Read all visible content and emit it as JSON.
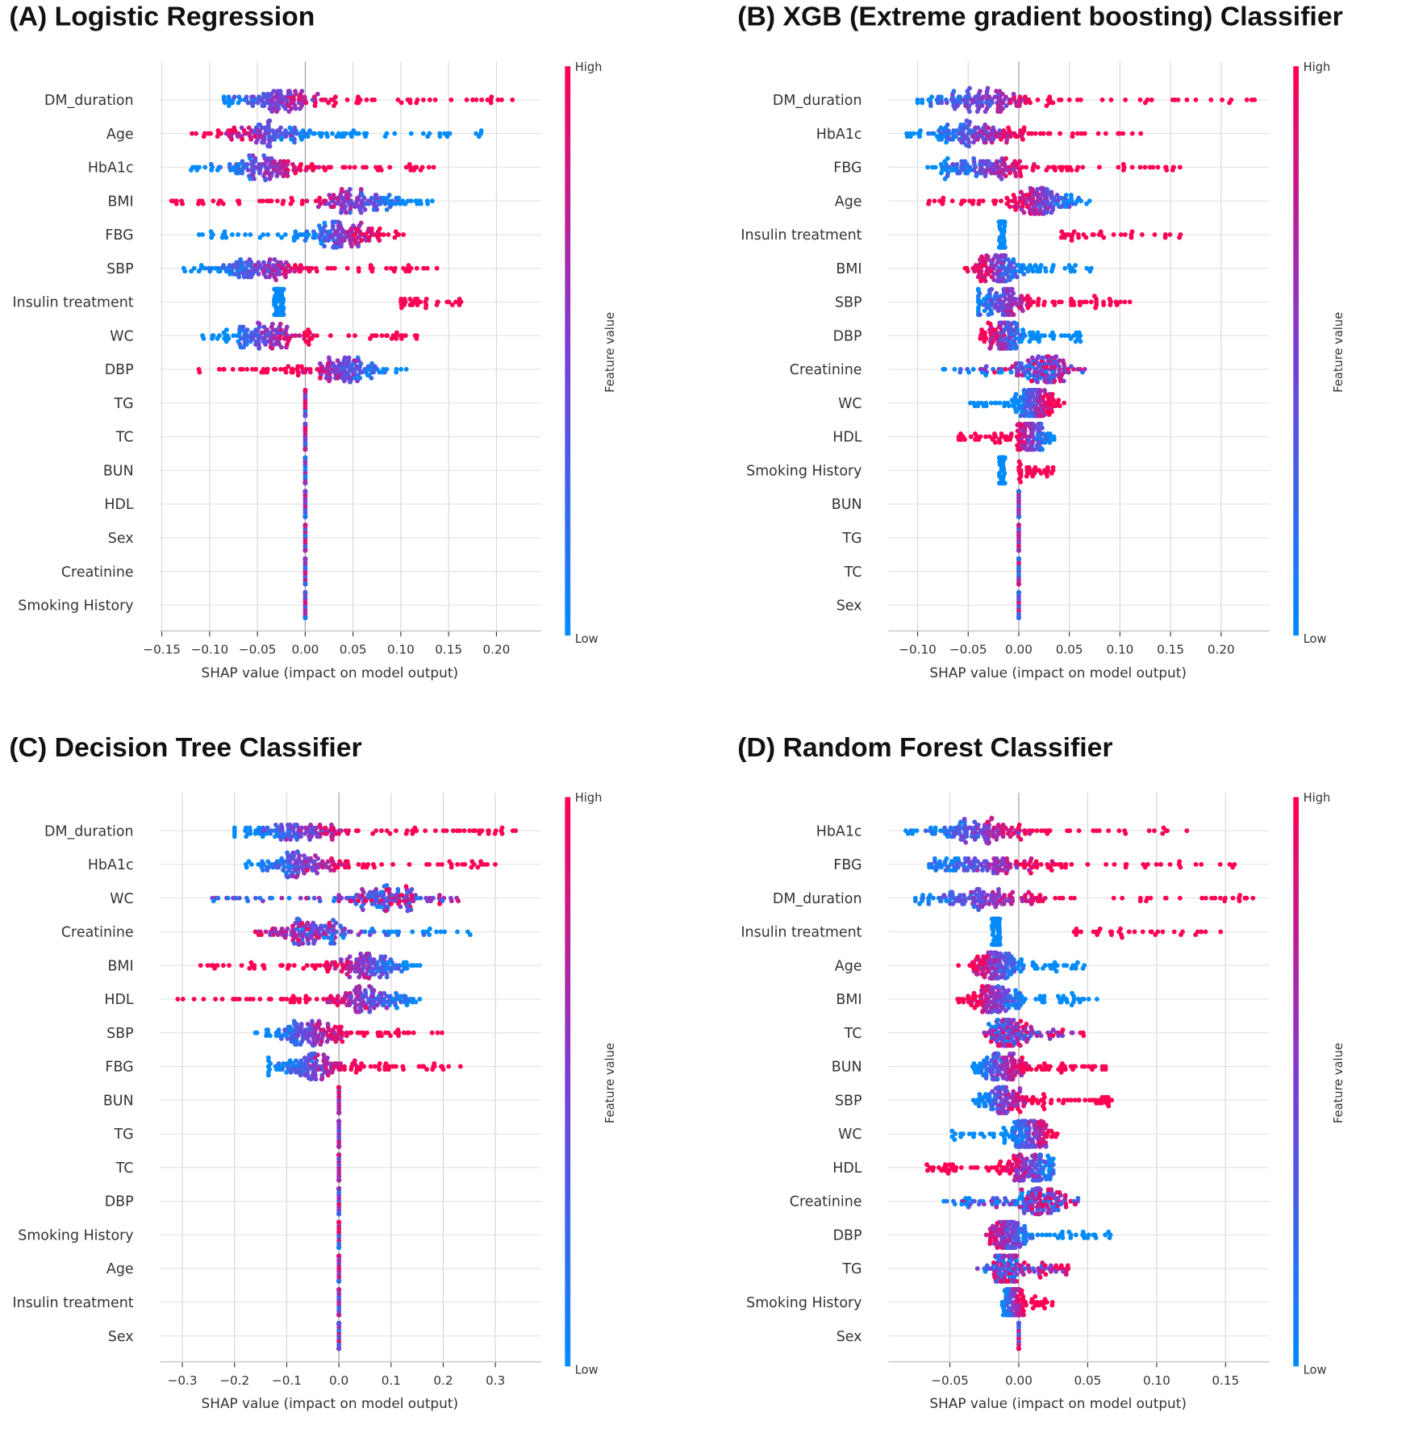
{
  "colors": {
    "low": "#008bfb",
    "high": "#ff0052",
    "grid": "#d6d6d6",
    "zero": "#999999"
  },
  "chart_data": [
    {
      "type": "scatter",
      "subtype": "shap-beeswarm",
      "title": "(A) Logistic Regression",
      "xlabel": "SHAP value (impact on model output)",
      "xlim": [
        -0.152,
        0.247
      ],
      "ticks": [
        -0.15,
        -0.1,
        -0.05,
        0.0,
        0.05,
        0.1,
        0.15,
        0.2
      ],
      "tick_labels": [
        "−0.15",
        "−0.10",
        "−0.05",
        "0.00",
        "0.05",
        "0.10",
        "0.15",
        "0.20"
      ],
      "colorbar": {
        "label": "Feature value",
        "high": "High",
        "low": "Low"
      },
      "features": [
        {
          "name": "DM_duration",
          "range": [
            -0.085,
            0.225
          ],
          "trend": 1
        },
        {
          "name": "Age",
          "range": [
            -0.12,
            0.195
          ],
          "trend": -1
        },
        {
          "name": "HbA1c",
          "range": [
            -0.12,
            0.135
          ],
          "trend": 1
        },
        {
          "name": "BMI",
          "range": [
            -0.14,
            0.14
          ],
          "trend": -1
        },
        {
          "name": "FBG",
          "range": [
            -0.115,
            0.105
          ],
          "trend": 1
        },
        {
          "name": "SBP",
          "range": [
            -0.13,
            0.145
          ],
          "trend": 1
        },
        {
          "name": "Insulin treatment",
          "range": [
            -0.025,
            0.165
          ],
          "trend": "binary",
          "high_range": [
            0.1,
            0.165
          ]
        },
        {
          "name": "WC",
          "range": [
            -0.11,
            0.12
          ],
          "trend": 1
        },
        {
          "name": "DBP",
          "range": [
            -0.115,
            0.11
          ],
          "trend": -1
        },
        {
          "name": "TG",
          "range": [
            0,
            0
          ],
          "trend": 0
        },
        {
          "name": "TC",
          "range": [
            0,
            0
          ],
          "trend": 0
        },
        {
          "name": "BUN",
          "range": [
            0,
            0
          ],
          "trend": 0
        },
        {
          "name": "HDL",
          "range": [
            0,
            0
          ],
          "trend": 0
        },
        {
          "name": "Sex",
          "range": [
            0,
            0
          ],
          "trend": 0
        },
        {
          "name": "Creatinine",
          "range": [
            0,
            0
          ],
          "trend": 0
        },
        {
          "name": "Smoking History",
          "range": [
            0,
            0
          ],
          "trend": 0
        }
      ]
    },
    {
      "type": "scatter",
      "subtype": "shap-beeswarm",
      "title": "(B) XGB (Extreme gradient boosting) Classifier",
      "xlabel": "SHAP value (impact on model output)",
      "xlim": [
        -0.129,
        0.248
      ],
      "ticks": [
        -0.1,
        -0.05,
        0.0,
        0.05,
        0.1,
        0.15,
        0.2
      ],
      "tick_labels": [
        "−0.10",
        "−0.05",
        "0.00",
        "0.05",
        "0.10",
        "0.15",
        "0.20"
      ],
      "colorbar": {
        "label": "Feature value",
        "high": "High",
        "low": "Low"
      },
      "features": [
        {
          "name": "DM_duration",
          "range": [
            -0.1,
            0.235
          ],
          "trend": 1
        },
        {
          "name": "HbA1c",
          "range": [
            -0.115,
            0.125
          ],
          "trend": 1
        },
        {
          "name": "FBG",
          "range": [
            -0.09,
            0.16
          ],
          "trend": 1
        },
        {
          "name": "Age",
          "range": [
            -0.095,
            0.07
          ],
          "trend": -1
        },
        {
          "name": "Insulin treatment",
          "range": [
            -0.015,
            0.16
          ],
          "trend": "binary",
          "high_range": [
            0.042,
            0.16
          ]
        },
        {
          "name": "BMI",
          "range": [
            -0.055,
            0.075
          ],
          "trend": -1
        },
        {
          "name": "SBP",
          "range": [
            -0.04,
            0.11
          ],
          "trend": 1
        },
        {
          "name": "DBP",
          "range": [
            -0.04,
            0.065
          ],
          "trend": -1
        },
        {
          "name": "Creatinine",
          "range": [
            -0.075,
            0.07
          ],
          "trend": 0.3
        },
        {
          "name": "WC",
          "range": [
            -0.05,
            0.045
          ],
          "trend": 1
        },
        {
          "name": "HDL",
          "range": [
            -0.06,
            0.035
          ],
          "trend": -1
        },
        {
          "name": "Smoking History",
          "range": [
            -0.015,
            0.035
          ],
          "trend": "binary",
          "high_range": [
            0.0,
            0.035
          ]
        },
        {
          "name": "BUN",
          "range": [
            0,
            0
          ],
          "trend": 0
        },
        {
          "name": "TG",
          "range": [
            0,
            0
          ],
          "trend": 0
        },
        {
          "name": "TC",
          "range": [
            0,
            0
          ],
          "trend": 0
        },
        {
          "name": "Sex",
          "range": [
            0,
            0
          ],
          "trend": 0
        }
      ]
    },
    {
      "type": "scatter",
      "subtype": "shap-beeswarm",
      "title": "(C) Decision Tree Classifier",
      "xlabel": "SHAP value (impact on model output)",
      "xlim": [
        -0.343,
        0.388
      ],
      "ticks": [
        -0.3,
        -0.2,
        -0.1,
        0.0,
        0.1,
        0.2,
        0.3
      ],
      "tick_labels": [
        "−0.3",
        "−0.2",
        "−0.1",
        "0.0",
        "0.1",
        "0.2",
        "0.3"
      ],
      "colorbar": {
        "label": "Feature value",
        "high": "High",
        "low": "Low"
      },
      "features": [
        {
          "name": "DM_duration",
          "range": [
            -0.2,
            0.35
          ],
          "trend": 1
        },
        {
          "name": "HbA1c",
          "range": [
            -0.19,
            0.305
          ],
          "trend": 1
        },
        {
          "name": "WC",
          "range": [
            -0.25,
            0.23
          ],
          "trend": 0.2
        },
        {
          "name": "Creatinine",
          "range": [
            -0.16,
            0.255
          ],
          "trend": -0.5
        },
        {
          "name": "BMI",
          "range": [
            -0.27,
            0.16
          ],
          "trend": -1
        },
        {
          "name": "HDL",
          "range": [
            -0.31,
            0.155
          ],
          "trend": -1
        },
        {
          "name": "SBP",
          "range": [
            -0.16,
            0.22
          ],
          "trend": 1
        },
        {
          "name": "FBG",
          "range": [
            -0.135,
            0.255
          ],
          "trend": 1
        },
        {
          "name": "BUN",
          "range": [
            0,
            0
          ],
          "trend": 0
        },
        {
          "name": "TG",
          "range": [
            0,
            0
          ],
          "trend": 0
        },
        {
          "name": "TC",
          "range": [
            0,
            0
          ],
          "trend": 0
        },
        {
          "name": "DBP",
          "range": [
            0,
            0
          ],
          "trend": 0
        },
        {
          "name": "Smoking History",
          "range": [
            0,
            0
          ],
          "trend": 0
        },
        {
          "name": "Age",
          "range": [
            0,
            0
          ],
          "trend": 0
        },
        {
          "name": "Insulin treatment",
          "range": [
            0,
            0
          ],
          "trend": 0
        },
        {
          "name": "Sex",
          "range": [
            0,
            0
          ],
          "trend": 0
        }
      ]
    },
    {
      "type": "scatter",
      "subtype": "shap-beeswarm",
      "title": "(D) Random Forest Classifier",
      "xlabel": "SHAP value (impact on model output)",
      "xlim": [
        -0.0947,
        0.182
      ],
      "ticks": [
        -0.05,
        0.0,
        0.05,
        0.1,
        0.15
      ],
      "tick_labels": [
        "−0.05",
        "0.00",
        "0.05",
        "0.10",
        "0.15"
      ],
      "colorbar": {
        "label": "Feature value",
        "high": "High",
        "low": "Low"
      },
      "features": [
        {
          "name": "HbA1c",
          "range": [
            -0.082,
            0.128
          ],
          "trend": 1
        },
        {
          "name": "FBG",
          "range": [
            -0.065,
            0.158
          ],
          "trend": 1
        },
        {
          "name": "DM_duration",
          "range": [
            -0.075,
            0.17
          ],
          "trend": 1
        },
        {
          "name": "Insulin treatment",
          "range": [
            -0.015,
            0.15
          ],
          "trend": "binary",
          "high_range": [
            0.04,
            0.15
          ]
        },
        {
          "name": "Age",
          "range": [
            -0.046,
            0.05
          ],
          "trend": -1
        },
        {
          "name": "BMI",
          "range": [
            -0.045,
            0.057
          ],
          "trend": -1
        },
        {
          "name": "TC",
          "range": [
            -0.025,
            0.048
          ],
          "trend": 0.2
        },
        {
          "name": "BUN",
          "range": [
            -0.035,
            0.065
          ],
          "trend": 1
        },
        {
          "name": "SBP",
          "range": [
            -0.033,
            0.068
          ],
          "trend": 1
        },
        {
          "name": "WC",
          "range": [
            -0.05,
            0.028
          ],
          "trend": 1
        },
        {
          "name": "HDL",
          "range": [
            -0.068,
            0.025
          ],
          "trend": -1
        },
        {
          "name": "Creatinine",
          "range": [
            -0.055,
            0.043
          ],
          "trend": 0.2
        },
        {
          "name": "DBP",
          "range": [
            -0.025,
            0.067
          ],
          "trend": -1
        },
        {
          "name": "TG",
          "range": [
            -0.03,
            0.037
          ],
          "trend": 0.2
        },
        {
          "name": "Smoking History",
          "range": [
            -0.012,
            0.025
          ],
          "trend": 1
        },
        {
          "name": "Sex",
          "range": [
            0,
            0
          ],
          "trend": 0
        }
      ]
    }
  ]
}
